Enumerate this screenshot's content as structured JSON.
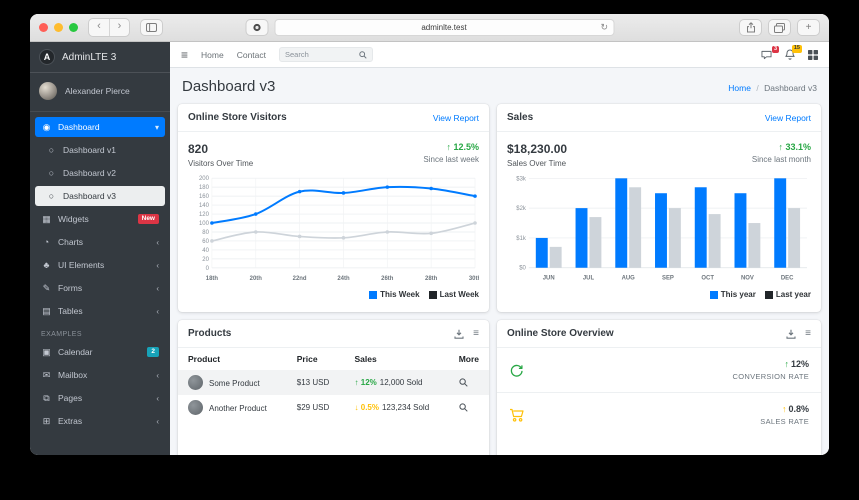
{
  "colors": {
    "accent": "#007bff",
    "success": "#28a745",
    "warning": "#ffc107",
    "danger": "#dc3545",
    "info": "#17a2b8",
    "sidebar": "#343a40",
    "series_gray": "#ced4da",
    "legend_dark": "#212529"
  },
  "browser": {
    "url": "adminlte.test",
    "back": "‹",
    "forward": "›",
    "new_tab": "+",
    "reload": "↻"
  },
  "sidebar": {
    "brand": "AdminLTE 3",
    "brand_initial": "A",
    "user": "Alexander Pierce",
    "section_label": "EXAMPLES",
    "items": [
      {
        "label": "Dashboard",
        "icon": "tachometer-icon",
        "type": "item",
        "active": true,
        "chevron": "down"
      },
      {
        "label": "Dashboard v1",
        "icon": "circle-icon",
        "type": "sub"
      },
      {
        "label": "Dashboard v2",
        "icon": "circle-icon",
        "type": "sub"
      },
      {
        "label": "Dashboard v3",
        "icon": "circle-icon",
        "type": "sub",
        "active": true
      },
      {
        "label": "Widgets",
        "icon": "th-grid-icon",
        "type": "item",
        "badge": {
          "text": "New",
          "color": "#dc3545"
        }
      },
      {
        "label": "Charts",
        "icon": "pie-chart-icon",
        "type": "item",
        "chevron": "left"
      },
      {
        "label": "UI Elements",
        "icon": "tree-icon",
        "type": "item",
        "chevron": "left"
      },
      {
        "label": "Forms",
        "icon": "edit-icon",
        "type": "item",
        "chevron": "left"
      },
      {
        "label": "Tables",
        "icon": "table-icon",
        "type": "item",
        "chevron": "left"
      },
      {
        "label": "EXAMPLES",
        "type": "header"
      },
      {
        "label": "Calendar",
        "icon": "calendar-icon",
        "type": "item",
        "badge": {
          "text": "2",
          "color": "#17a2b8"
        }
      },
      {
        "label": "Mailbox",
        "icon": "envelope-icon",
        "type": "item",
        "chevron": "left"
      },
      {
        "label": "Pages",
        "icon": "book-icon",
        "type": "item",
        "chevron": "left"
      },
      {
        "label": "Extras",
        "icon": "plus-square-icon",
        "type": "item",
        "chevron": "left"
      }
    ]
  },
  "navbar": {
    "links": [
      {
        "label": "Home"
      },
      {
        "label": "Contact"
      }
    ],
    "search_placeholder": "Search",
    "messages_badge": "3",
    "notifications_badge": "15"
  },
  "page": {
    "title": "Dashboard v3",
    "breadcrumb_home": "Home",
    "breadcrumb_sep": "/",
    "breadcrumb_current": "Dashboard v3"
  },
  "cards": {
    "visitors": {
      "title": "Online Store Visitors",
      "link": "View Report",
      "value": "820",
      "value_label": "Visitors Over Time",
      "change_arrow": "↑",
      "change": "12.5%",
      "change_note": "Since last week"
    },
    "sales": {
      "title": "Sales",
      "link": "View Report",
      "value": "$18,230.00",
      "value_label": "Sales Over Time",
      "change_arrow": "↑",
      "change": "33.1%",
      "change_note": "Since last month"
    },
    "products": {
      "title": "Products",
      "columns": [
        "Product",
        "Price",
        "Sales",
        "More"
      ],
      "rows": [
        {
          "name": "Some Product",
          "price": "$13 USD",
          "change_dir": "up",
          "change_arrow": "↑",
          "change": "12%",
          "sold": "12,000 Sold"
        },
        {
          "name": "Another Product",
          "price": "$29 USD",
          "change_dir": "down",
          "change_arrow": "↓",
          "change": "0.5%",
          "sold": "123,234 Sold"
        }
      ]
    },
    "overview": {
      "title": "Online Store Overview",
      "rows": [
        {
          "icon": "refresh-icon",
          "icon_color": "#28a745",
          "arrow": "↑",
          "arrow_color": "#28a745",
          "value": "12%",
          "label": "CONVERSION RATE"
        },
        {
          "icon": "cart-icon",
          "icon_color": "#ffc107",
          "arrow": "↑",
          "arrow_color": "#ffc107",
          "value": "0.8%",
          "label": "SALES RATE"
        }
      ]
    }
  },
  "chart_data": [
    {
      "id": "visitors-chart",
      "type": "line",
      "title": "Visitors Over Time",
      "x": [
        "18th",
        "20th",
        "22nd",
        "24th",
        "26th",
        "28th",
        "30th"
      ],
      "series": [
        {
          "name": "This Week",
          "color": "#007bff",
          "values": [
            100,
            120,
            170,
            167,
            180,
            177,
            160
          ]
        },
        {
          "name": "Last Week",
          "color": "#ced4da",
          "values": [
            60,
            80,
            70,
            67,
            80,
            77,
            100
          ]
        }
      ],
      "ylim": [
        0,
        200
      ],
      "ytick_step": 20,
      "grid": "both",
      "legend_position": "bottom-right",
      "legend_swatch_colors": [
        "#007bff",
        "#212529"
      ]
    },
    {
      "id": "sales-chart",
      "type": "bar",
      "title": "Sales Over Time",
      "x": [
        "JUN",
        "JUL",
        "AUG",
        "SEP",
        "OCT",
        "NOV",
        "DEC"
      ],
      "series": [
        {
          "name": "This year",
          "color": "#007bff",
          "values": [
            1000,
            2000,
            3000,
            2500,
            2700,
            2500,
            3000
          ]
        },
        {
          "name": "Last year",
          "color": "#ced4da",
          "values": [
            700,
            1700,
            2700,
            2000,
            1800,
            1500,
            2000
          ]
        }
      ],
      "ylim": [
        0,
        3000
      ],
      "yticks": [
        {
          "v": 0,
          "label": "$0"
        },
        {
          "v": 1000,
          "label": "$1k"
        },
        {
          "v": 2000,
          "label": "$2k"
        },
        {
          "v": 3000,
          "label": "$3k"
        }
      ],
      "grid": "horizontal",
      "legend_position": "bottom-right",
      "legend_swatch_colors": [
        "#007bff",
        "#212529"
      ]
    }
  ]
}
